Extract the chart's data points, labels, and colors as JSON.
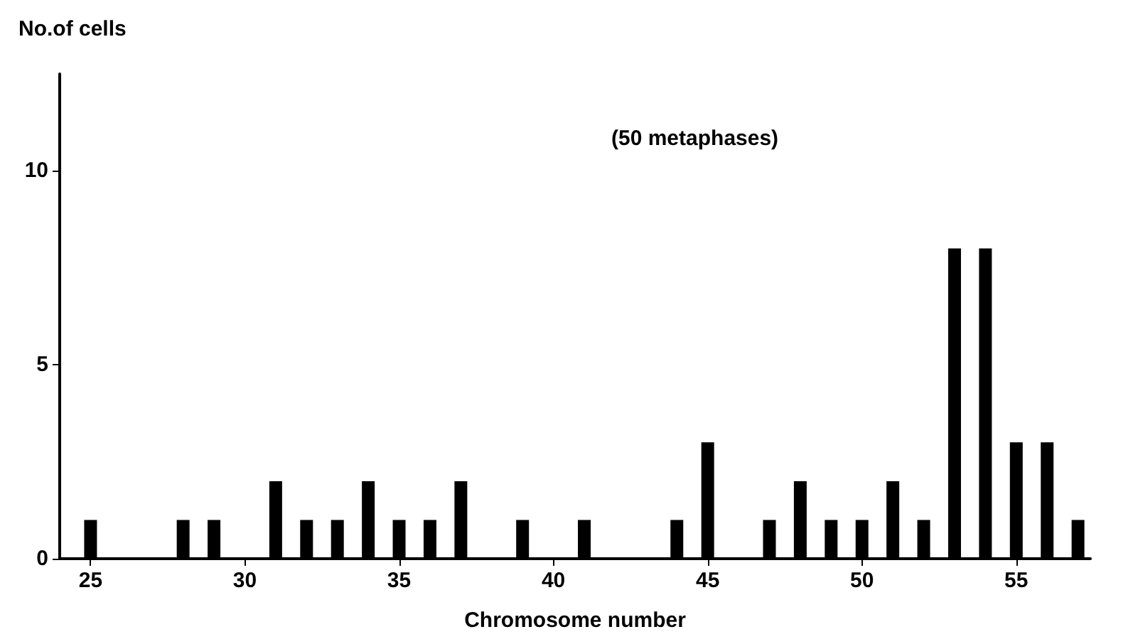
{
  "chart_data": {
    "type": "bar",
    "xlabel": "Chromosome number",
    "ylabel": "No.of cells",
    "annotations": [
      "(50 metaphases)"
    ],
    "x": [
      25,
      28,
      29,
      31,
      32,
      33,
      34,
      35,
      36,
      37,
      39,
      41,
      44,
      45,
      47,
      48,
      49,
      50,
      51,
      52,
      53,
      54,
      55,
      56,
      57
    ],
    "values": [
      1,
      1,
      1,
      2,
      1,
      1,
      2,
      1,
      1,
      2,
      1,
      1,
      1,
      3,
      1,
      2,
      1,
      1,
      2,
      1,
      8,
      8,
      3,
      3,
      1
    ],
    "color": "#000000",
    "xlim": [
      24,
      57.4
    ],
    "xticks": [
      25,
      30,
      35,
      40,
      45,
      50,
      55
    ],
    "ylim": [
      0,
      12.5
    ],
    "yticks": [
      0,
      5,
      10
    ],
    "grid": false
  }
}
